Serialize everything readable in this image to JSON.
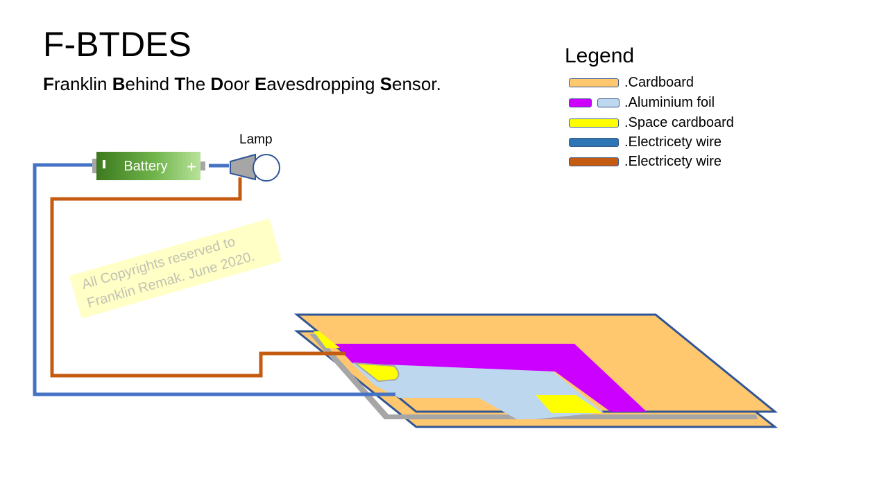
{
  "title": "F-BTDES",
  "subtitle": [
    {
      "bold": "F",
      "rest": "ranklin "
    },
    {
      "bold": "B",
      "rest": "ehind "
    },
    {
      "bold": "T",
      "rest": "he "
    },
    {
      "bold": "D",
      "rest": "oor "
    },
    {
      "bold": "E",
      "rest": "avesdropping "
    },
    {
      "bold": "S",
      "rest": "ensor."
    }
  ],
  "legend": {
    "title": "Legend",
    "items": [
      {
        "label": ".Cardboard",
        "colors": [
          "#ffc86e"
        ]
      },
      {
        "label": ".Aluminium foil",
        "colors": [
          "#cc00ff",
          "#bdd7ee"
        ]
      },
      {
        "label": ".Space cardboard",
        "colors": [
          "#ffff00"
        ]
      },
      {
        "label": ".Electricety wire",
        "colors": [
          "#2e75b6"
        ]
      },
      {
        "label": ".Electricety wire",
        "colors": [
          "#c55a11"
        ]
      }
    ]
  },
  "components": {
    "battery_label": "Battery",
    "lamp_label": "Lamp"
  },
  "watermark": {
    "line1": "All Copyrights reserved to",
    "line2": "Franklin Remak. June 2020."
  },
  "colors": {
    "cardboard": "#ffc86e",
    "outline": "#2f5597",
    "foil_purple": "#cc00ff",
    "foil_blue": "#bdd7ee",
    "space_cardboard": "#ffff00",
    "wire_blue": "#4472c4",
    "wire_orange": "#c55a11"
  }
}
